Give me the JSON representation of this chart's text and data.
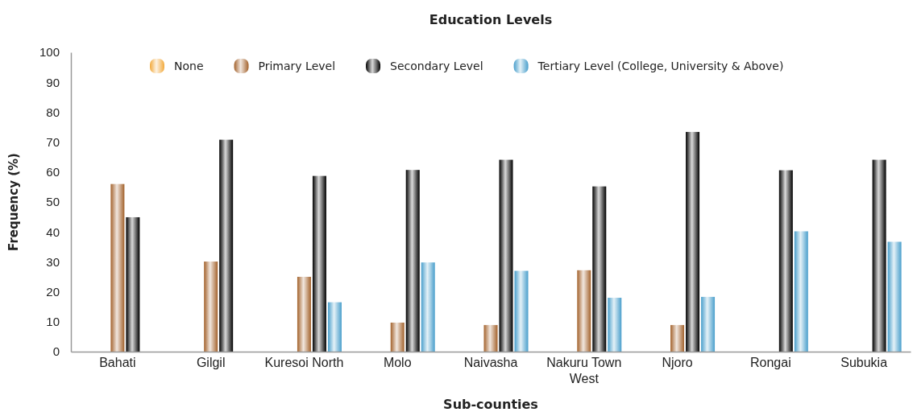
{
  "chart_data": {
    "type": "bar",
    "title": "Education Levels",
    "xlabel": "Sub-counties",
    "ylabel": "Frequency (%)",
    "categories": [
      "Bahati",
      "Gilgil",
      "Kuresoi North",
      "Molo",
      "Naivasha",
      "Nakuru Town West",
      "Njoro",
      "Rongai",
      "Subukia"
    ],
    "series": [
      {
        "name": "None",
        "color": "#f2a93b",
        "values": [
          null,
          null,
          null,
          null,
          null,
          null,
          null,
          null,
          null
        ]
      },
      {
        "name": "Primary Level",
        "color": "#a3622c",
        "values": [
          56.0,
          30.1,
          25.0,
          9.7,
          8.9,
          27.2,
          8.9,
          null,
          null
        ]
      },
      {
        "name": "Secondary Level",
        "color": "#000000",
        "values": [
          44.9,
          70.8,
          58.7,
          60.7,
          64.1,
          55.2,
          73.4,
          60.6,
          64.1
        ]
      },
      {
        "name": "Tertiary Level (College, University & Above)",
        "color": "#4a9fcc",
        "values": [
          null,
          null,
          16.5,
          29.8,
          27.0,
          18.0,
          18.3,
          40.2,
          36.7
        ]
      }
    ],
    "ylim": [
      0,
      100
    ],
    "yticks": [
      0,
      10,
      20,
      30,
      40,
      50,
      60,
      70,
      80,
      90,
      100
    ],
    "grid": false,
    "legend": "top"
  }
}
